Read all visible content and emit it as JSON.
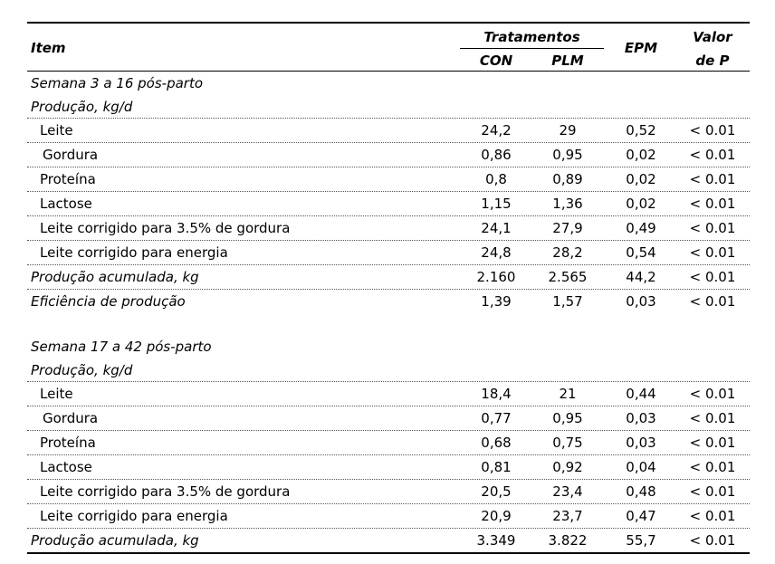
{
  "header": {
    "item": "Item",
    "tratamentos": "Tratamentos",
    "con": "CON",
    "plm": "PLM",
    "epm": "EPM",
    "valor_line1": "Valor",
    "valor_line2": "de P"
  },
  "sections": [
    {
      "title": "Semana 3 a 16 pós-parto",
      "subtitle": "Produção, kg/d",
      "rows": [
        {
          "label": "Leite",
          "con": "24,2",
          "plm": "29",
          "epm": "0,52",
          "p": "< 0.01",
          "style": "ind1"
        },
        {
          "label": "Gordura",
          "con": "0,86",
          "plm": "0,95",
          "epm": "0,02",
          "p": "< 0.01",
          "style": "ind2"
        },
        {
          "label": "Proteína",
          "con": "0,8",
          "plm": "0,89",
          "epm": "0,02",
          "p": "< 0.01",
          "style": "ind1"
        },
        {
          "label": "Lactose",
          "con": "1,15",
          "plm": "1,36",
          "epm": "0,02",
          "p": "< 0.01",
          "style": "ind1"
        },
        {
          "label": "Leite corrigido para 3.5% de gordura",
          "con": "24,1",
          "plm": "27,9",
          "epm": "0,49",
          "p": "< 0.01",
          "style": "ind1"
        },
        {
          "label": "Leite corrigido para energia",
          "con": "24,8",
          "plm": "28,2",
          "epm": "0,54",
          "p": "< 0.01",
          "style": "ind1"
        },
        {
          "label": "Produção acumulada, kg",
          "con": "2.160",
          "plm": "2.565",
          "epm": "44,2",
          "p": "< 0.01",
          "style": "it"
        },
        {
          "label": "Eficiência de produção",
          "con": "1,39",
          "plm": "1,57",
          "epm": "0,03",
          "p": "< 0.01",
          "style": "it"
        }
      ]
    },
    {
      "title": "Semana 17 a 42 pós-parto",
      "subtitle": "Produção, kg/d",
      "rows": [
        {
          "label": "Leite",
          "con": "18,4",
          "plm": "21",
          "epm": "0,44",
          "p": "< 0.01",
          "style": "ind1"
        },
        {
          "label": "Gordura",
          "con": "0,77",
          "plm": "0,95",
          "epm": "0,03",
          "p": "< 0.01",
          "style": "ind2"
        },
        {
          "label": "Proteína",
          "con": "0,68",
          "plm": "0,75",
          "epm": "0,03",
          "p": "< 0.01",
          "style": "ind1"
        },
        {
          "label": "Lactose",
          "con": "0,81",
          "plm": "0,92",
          "epm": "0,04",
          "p": "< 0.01",
          "style": "ind1"
        },
        {
          "label": "Leite corrigido para 3.5% de gordura",
          "con": "20,5",
          "plm": "23,4",
          "epm": "0,48",
          "p": "< 0.01",
          "style": "ind1"
        },
        {
          "label": "Leite corrigido para energia",
          "con": "20,9",
          "plm": "23,7",
          "epm": "0,47",
          "p": "< 0.01",
          "style": "ind1"
        },
        {
          "label": "Produção acumulada, kg",
          "con": "3.349",
          "plm": "3.822",
          "epm": "55,7",
          "p": "< 0.01",
          "style": "it"
        }
      ]
    }
  ]
}
